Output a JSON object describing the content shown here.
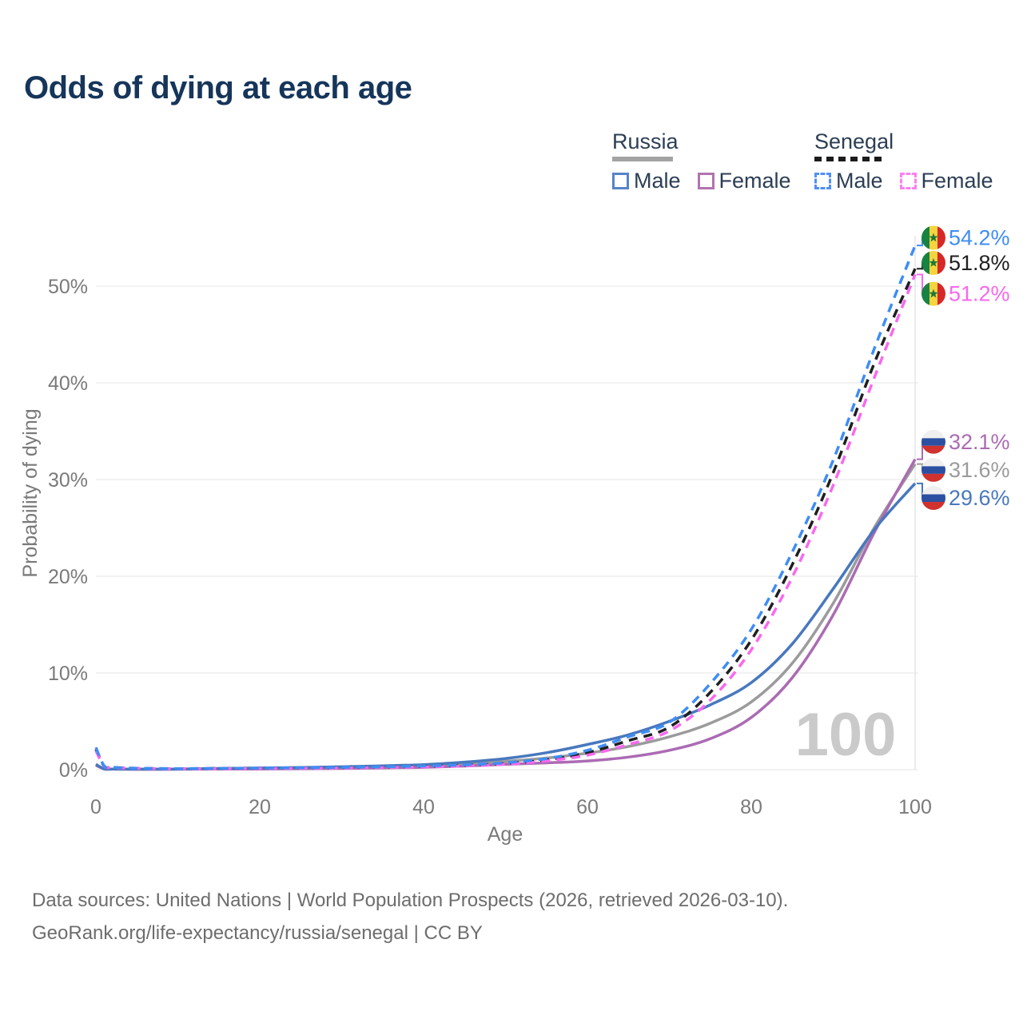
{
  "header": {
    "title": "Odds of dying at each age"
  },
  "legend": {
    "russia": {
      "label": "Russia",
      "male_label": "Male",
      "female_label": "Female",
      "line_style": "solid"
    },
    "senegal": {
      "label": "Senegal",
      "male_label": "Male",
      "female_label": "Female",
      "line_style": "dashed"
    }
  },
  "watermark": {
    "age_label": "100"
  },
  "footer": {
    "line1": "Data sources: United Nations | World Population Prospects (2026, retrieved 2026-03-10).",
    "line2": "GeoRank.org/life-expectancy/russia/senegal | CC BY"
  },
  "chart_data": {
    "type": "line",
    "title": "Odds of dying at each age",
    "xlabel": "Age",
    "ylabel": "Probability of dying",
    "xlim": [
      0,
      100
    ],
    "ylim_pct": [
      0,
      56
    ],
    "x_ticks": [
      0,
      20,
      40,
      60,
      80,
      100
    ],
    "y_ticks": [
      "0%",
      "10%",
      "20%",
      "30%",
      "40%",
      "50%"
    ],
    "grid": "horizontal-only",
    "age_marker": 100,
    "legend_position": "top-right",
    "colors": {
      "russia_male": "#4878be",
      "russia_female": "#ab6bb3",
      "russia_both": "#9b9b9b",
      "senegal_male": "#3f8df4",
      "senegal_female": "#f968ef",
      "senegal_both": "#1f1f1f",
      "grid": "#ebebeb",
      "tick_text": "#7a7a7a",
      "watermark": "#cacaca"
    },
    "ages": [
      0,
      1,
      2,
      5,
      10,
      15,
      20,
      25,
      30,
      35,
      40,
      45,
      50,
      55,
      60,
      65,
      70,
      75,
      80,
      85,
      90,
      95,
      100
    ],
    "series": [
      {
        "id": "russia_both",
        "name": "Russia both sexes",
        "country": "russia",
        "sex": "both",
        "color": "#9b9b9b",
        "dashed": false,
        "flag": "russia",
        "end_label": "31.6%",
        "end_value_pct": 31.6,
        "label_pos_pct": 31.0,
        "values_pct": [
          0.5,
          0.08,
          0.055,
          0.045,
          0.05,
          0.09,
          0.12,
          0.16,
          0.21,
          0.28,
          0.38,
          0.57,
          0.85,
          1.2,
          1.7,
          2.4,
          3.4,
          4.8,
          7.0,
          11.0,
          17.2,
          25.0,
          31.6
        ]
      },
      {
        "id": "russia_female",
        "name": "Russia female",
        "country": "russia",
        "sex": "female",
        "color": "#ab6bb3",
        "dashed": false,
        "flag": "russia",
        "end_label": "32.1%",
        "end_value_pct": 32.1,
        "label_pos_pct": 33.9,
        "values_pct": [
          0.45,
          0.07,
          0.05,
          0.04,
          0.04,
          0.06,
          0.07,
          0.09,
          0.12,
          0.17,
          0.24,
          0.37,
          0.55,
          0.7,
          0.9,
          1.3,
          2.0,
          3.2,
          5.4,
          9.5,
          16.0,
          24.5,
          32.1
        ]
      },
      {
        "id": "russia_male",
        "name": "Russia male",
        "country": "russia",
        "sex": "male",
        "color": "#4878be",
        "dashed": false,
        "flag": "russia",
        "end_label": "29.6%",
        "end_value_pct": 29.6,
        "label_pos_pct": 28.1,
        "values_pct": [
          0.55,
          0.09,
          0.06,
          0.05,
          0.06,
          0.12,
          0.17,
          0.22,
          0.3,
          0.4,
          0.52,
          0.78,
          1.15,
          1.75,
          2.6,
          3.6,
          5.0,
          6.7,
          9.0,
          13.0,
          18.7,
          24.8,
          29.6
        ]
      },
      {
        "id": "senegal_both",
        "name": "Senegal both sexes",
        "country": "senegal",
        "sex": "both",
        "color": "#1f1f1f",
        "dashed": true,
        "flag": "senegal",
        "end_label": "51.8%",
        "end_value_pct": 51.8,
        "label_pos_pct": 52.4,
        "values_pct": [
          2.1,
          0.38,
          0.23,
          0.14,
          0.1,
          0.12,
          0.14,
          0.17,
          0.21,
          0.26,
          0.33,
          0.44,
          0.64,
          1.02,
          1.75,
          3.0,
          4.4,
          8.0,
          13.4,
          21.2,
          30.7,
          42.0,
          51.8
        ]
      },
      {
        "id": "senegal_female",
        "name": "Senegal female",
        "country": "senegal",
        "sex": "female",
        "color": "#f968ef",
        "dashed": true,
        "flag": "senegal",
        "end_label": "51.2%",
        "end_value_pct": 51.2,
        "label_pos_pct": 49.2,
        "values_pct": [
          1.95,
          0.35,
          0.22,
          0.13,
          0.09,
          0.1,
          0.12,
          0.15,
          0.18,
          0.22,
          0.28,
          0.38,
          0.56,
          0.9,
          1.5,
          2.6,
          4.0,
          7.2,
          12.4,
          19.9,
          29.4,
          40.5,
          51.2
        ]
      },
      {
        "id": "senegal_male",
        "name": "Senegal male",
        "country": "senegal",
        "sex": "male",
        "color": "#3f8df4",
        "dashed": true,
        "flag": "senegal",
        "end_label": "54.2%",
        "end_value_pct": 54.2,
        "label_pos_pct": 55.0,
        "values_pct": [
          2.3,
          0.4,
          0.25,
          0.15,
          0.11,
          0.13,
          0.16,
          0.2,
          0.24,
          0.3,
          0.38,
          0.5,
          0.72,
          1.15,
          2.0,
          3.4,
          4.9,
          8.9,
          14.5,
          22.5,
          32.0,
          43.5,
          54.2
        ]
      }
    ]
  }
}
